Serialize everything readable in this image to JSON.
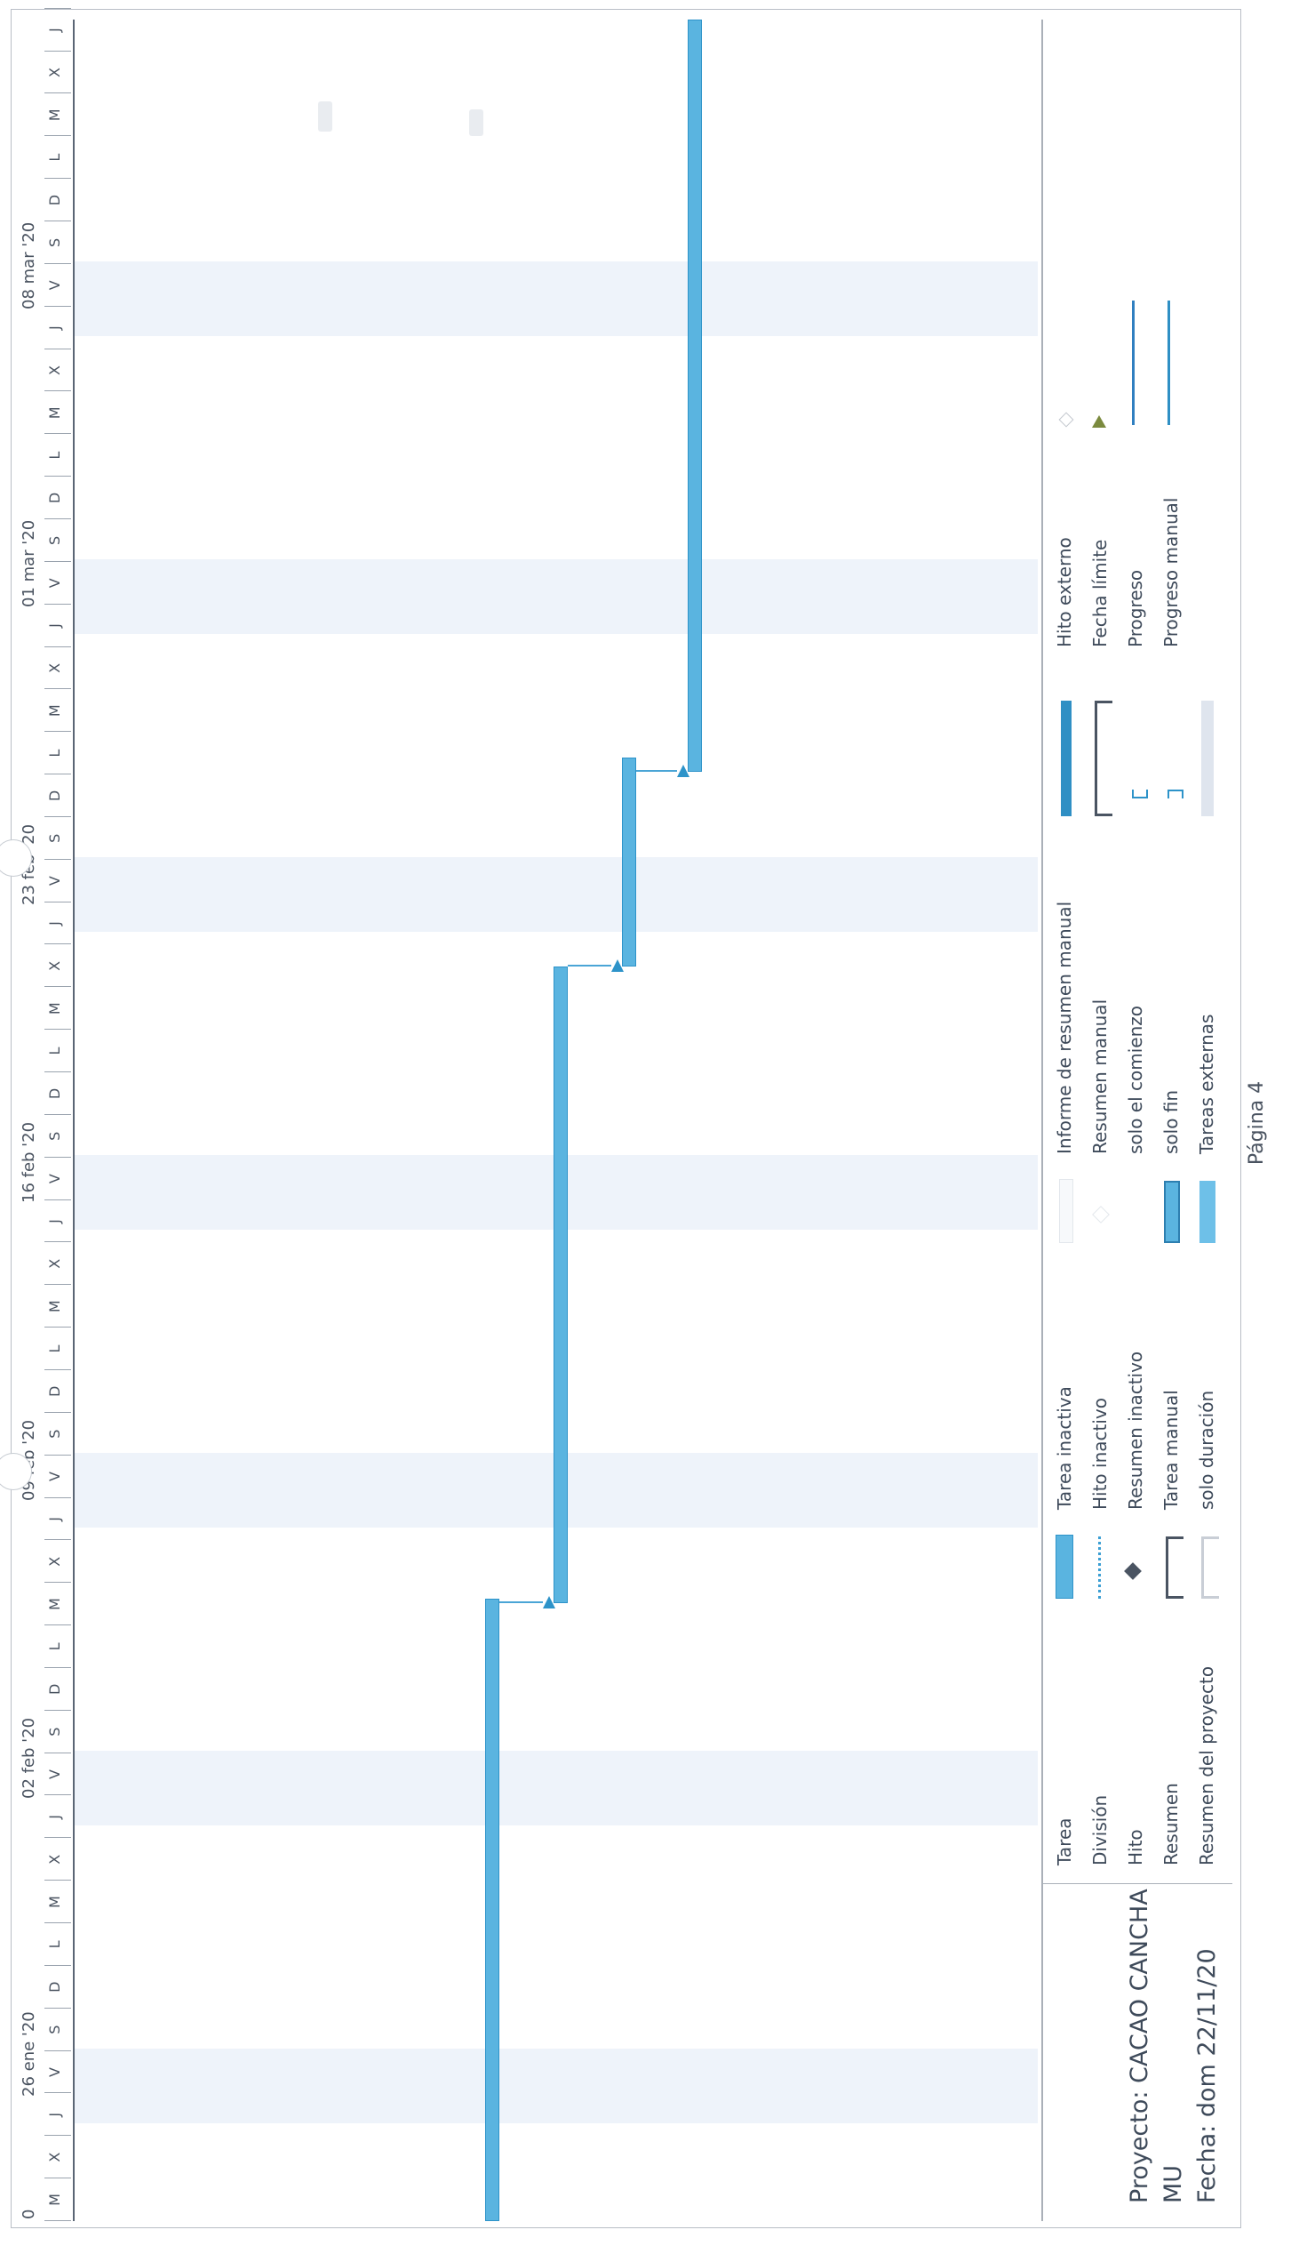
{
  "timescale": {
    "weeks": [
      {
        "label": "26 ene '20"
      },
      {
        "label": "02 feb '20"
      },
      {
        "label": "09 feb '20"
      },
      {
        "label": "16 feb '20"
      },
      {
        "label": "23 feb '20"
      },
      {
        "label": "01 mar '20"
      },
      {
        "label": "08 mar '20"
      }
    ],
    "leading_fragment": "0",
    "days": [
      "M",
      "X",
      "J",
      "V",
      "S",
      "D",
      "L",
      "M",
      "X",
      "J",
      "V",
      "S",
      "D",
      "L",
      "M",
      "X",
      "J",
      "V",
      "S",
      "D",
      "L",
      "M",
      "X",
      "J",
      "V",
      "S",
      "D",
      "L",
      "M",
      "X",
      "J",
      "V",
      "S",
      "D",
      "L",
      "M",
      "X",
      "J",
      "V",
      "S",
      "D",
      "L",
      "M",
      "X",
      "J",
      "V",
      "S",
      "D",
      "L",
      "M",
      "X",
      "J",
      "V",
      "S"
    ]
  },
  "project": {
    "line1": "Proyecto: CACAO CANCHA MU",
    "line2": "Fecha: dom 22/11/20"
  },
  "legend": {
    "col1": [
      "Tarea",
      "División",
      "Hito",
      "Resumen",
      "Resumen del proyecto"
    ],
    "col2": [
      "Tarea inactiva",
      "Hito inactivo",
      "Resumen inactivo",
      "Tarea manual",
      "solo duración"
    ],
    "col3": [
      "Informe de resumen manual",
      "Resumen manual",
      "solo el comienzo",
      "solo fin",
      "Tareas externas"
    ],
    "col4": [
      "Hito externo",
      "Fecha límite",
      "Progreso",
      "Progreso manual"
    ]
  },
  "footer": {
    "page_label": "Página 4"
  },
  "colors": {
    "task_bar": "#5ab4e0",
    "task_border": "#2d93c9",
    "weekend_band": "#eef3fa"
  }
}
